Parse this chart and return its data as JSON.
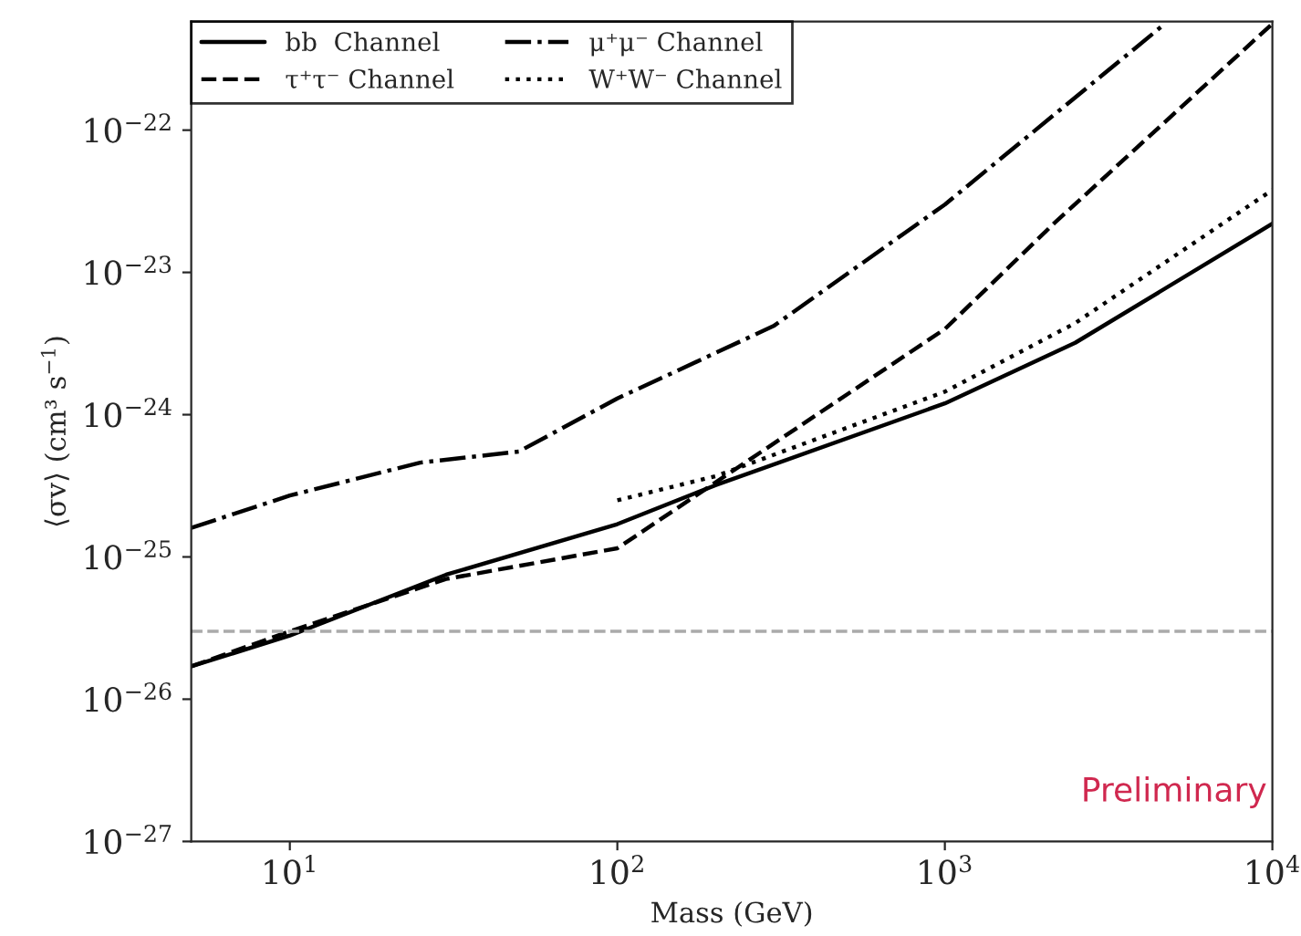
{
  "chart_data": {
    "type": "line",
    "xlabel": "Mass (GeV)",
    "ylabel": "⟨σv⟩ (cm³ s$^{−1}$)",
    "log": "xy",
    "xlim": [
      5,
      10000
    ],
    "ylim": [
      1e-27,
      5.8e-22
    ],
    "xticks": [
      {
        "value": 10,
        "label": "10$^{1}$"
      },
      {
        "value": 100,
        "label": "10$^{2}$"
      },
      {
        "value": 1000,
        "label": "10$^{3}$"
      },
      {
        "value": 10000,
        "label": "10$^{4}$"
      }
    ],
    "yticks": [
      {
        "value": 1e-27,
        "label": "10$^{−27}$"
      },
      {
        "value": 1e-26,
        "label": "10$^{−26}$"
      },
      {
        "value": 1e-25,
        "label": "10$^{−25}$"
      },
      {
        "value": 1e-24,
        "label": "10$^{−24}$"
      },
      {
        "value": 1e-23,
        "label": "10$^{−23}$"
      },
      {
        "value": 1e-22,
        "label": "10$^{−22}$"
      }
    ],
    "grid": false,
    "legend": "top left",
    "series": [
      {
        "name": "bb  Channel",
        "color": "#000000",
        "line_style": "solid",
        "x": [
          5,
          10,
          30,
          100,
          200,
          1000,
          2500,
          10000
        ],
        "values": [
          1.7e-26,
          2.8e-26,
          7.5e-26,
          1.7e-25,
          3.2e-25,
          1.2e-24,
          3.2e-24,
          2.2e-23
        ]
      },
      {
        "name": "τ⁺τ⁻ Channel",
        "color": "#000000",
        "line_style": "dashed",
        "x": [
          5,
          10,
          30,
          100,
          190,
          1000,
          2150,
          10000
        ],
        "values": [
          1.7e-26,
          3e-26,
          7e-26,
          1.15e-25,
          3.1e-25,
          4e-24,
          2.2e-23,
          5.6e-22
        ]
      },
      {
        "name": "μ⁺μ⁻ Channel",
        "color": "#000000",
        "line_style": "dashdot",
        "x": [
          5,
          10,
          25,
          50,
          100,
          300,
          1000,
          4700
        ],
        "values": [
          1.6e-25,
          2.7e-25,
          4.6e-25,
          5.5e-25,
          1.3e-24,
          4.2e-24,
          3e-23,
          5.6e-22
        ]
      },
      {
        "name": "W⁺W⁻ Channel",
        "color": "#000000",
        "line_style": "dotted",
        "x": [
          100,
          200,
          1000,
          2500,
          10000
        ],
        "values": [
          2.5e-25,
          3.7e-25,
          1.45e-24,
          4.4e-24,
          3.8e-23
        ]
      }
    ],
    "ref_lines": [
      {
        "axis": "y",
        "value": 3e-26,
        "color": "#aaaaaa",
        "line_style": "dashed"
      }
    ],
    "annotations": [
      "Preliminary"
    ]
  }
}
